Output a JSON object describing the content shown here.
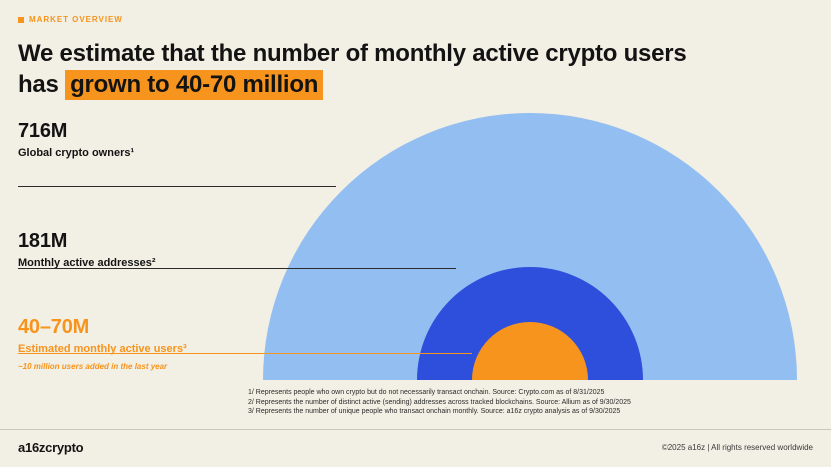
{
  "header": {
    "eyebrow": "MARKET OVERVIEW",
    "title_line1": "We estimate that the number of monthly active crypto users",
    "title_line2_prefix": "has ",
    "title_highlight": "grown to 40-70 million"
  },
  "stats": [
    {
      "value": "716M",
      "label": "Global crypto owners¹"
    },
    {
      "value": "181M",
      "label": "Monthly active addresses²"
    },
    {
      "value": "40–70M",
      "label": "Estimated monthly active users³",
      "note": "~10 million users added in the last year"
    }
  ],
  "footnotes": [
    "1/ Represents people who own crypto but do not necessarily transact onchain. Source: Crypto.com as of 8/31/2025",
    "2/ Represents the number of distinct active (sending) addresses across tracked blockchains. Source: Allium as of 9/30/2025",
    "3/ Represents the number of unique people who transact onchain monthly. Source: a16z crypto analysis as of 9/30/2025"
  ],
  "footer": {
    "logo": "a16zcrypto",
    "copyright": "©2025 a16z | All rights reserved worldwide"
  },
  "colors": {
    "background": "#F2EFE4",
    "accent_orange": "#F7941D",
    "light_blue": "#92BEF2",
    "royal_blue": "#2E4EDC",
    "text": "#131313"
  },
  "chart_data": {
    "type": "area",
    "subtype": "nested_proportional_semicircles",
    "categories": [
      "Global crypto owners",
      "Monthly active addresses",
      "Estimated monthly active users"
    ],
    "values": [
      716,
      181,
      55
    ],
    "value_labels": [
      "716M",
      "181M",
      "40–70M"
    ],
    "last_value_range": [
      40,
      70
    ],
    "unit": "million users",
    "title": "We estimate that the number of monthly active crypto users has grown to 40-70 million",
    "annotation": "~10 million users added in the last year",
    "colors": [
      "#92BEF2",
      "#2E4EDC",
      "#F7941D"
    ],
    "legend_position": "left",
    "grid": false
  }
}
